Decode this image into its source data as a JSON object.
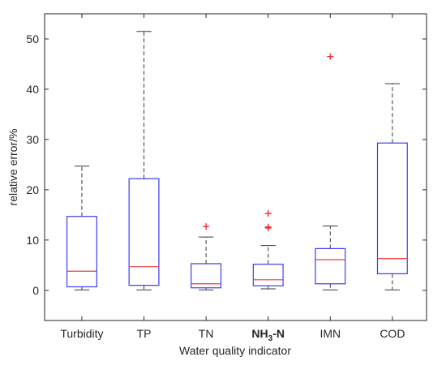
{
  "chart_data": {
    "type": "boxplot",
    "xlabel": "Water quality indicator",
    "ylabel": "relative error/%",
    "ylim": [
      -6,
      55
    ],
    "yticks": [
      0,
      10,
      20,
      30,
      40,
      50
    ],
    "categories": [
      {
        "label": "Turbidity"
      },
      {
        "label": "TP"
      },
      {
        "label": "TN"
      },
      {
        "label": "NH",
        "sub": "3",
        "suffix": "-N"
      },
      {
        "label": "IMN"
      },
      {
        "label": "COD"
      }
    ],
    "boxes": [
      {
        "name": "Turbidity",
        "lower_whisker": 0.1,
        "q1": 0.7,
        "median": 3.8,
        "q3": 14.7,
        "upper_whisker": 24.7,
        "outliers": []
      },
      {
        "name": "TP",
        "lower_whisker": 0.1,
        "q1": 1.0,
        "median": 4.7,
        "q3": 22.2,
        "upper_whisker": 51.5,
        "outliers": []
      },
      {
        "name": "TN",
        "lower_whisker": 0.1,
        "q1": 0.5,
        "median": 1.3,
        "q3": 5.3,
        "upper_whisker": 10.6,
        "outliers": [
          12.7
        ]
      },
      {
        "name": "NH3-N",
        "lower_whisker": 0.3,
        "q1": 0.9,
        "median": 2.1,
        "q3": 5.2,
        "upper_whisker": 8.9,
        "outliers": [
          12.4,
          12.6,
          15.3
        ]
      },
      {
        "name": "IMN",
        "lower_whisker": 0.1,
        "q1": 1.3,
        "median": 6.1,
        "q3": 8.3,
        "upper_whisker": 12.8,
        "outliers": [
          46.5
        ]
      },
      {
        "name": "COD",
        "lower_whisker": 0.1,
        "q1": 3.3,
        "median": 6.3,
        "q3": 29.3,
        "upper_whisker": 41.1,
        "outliers": []
      }
    ],
    "colors": {
      "box": "#3b3bf5",
      "median": "#f03a3a",
      "whisker": "#3a3a3a",
      "outlier": "#f02020",
      "axis": "#262626"
    }
  }
}
